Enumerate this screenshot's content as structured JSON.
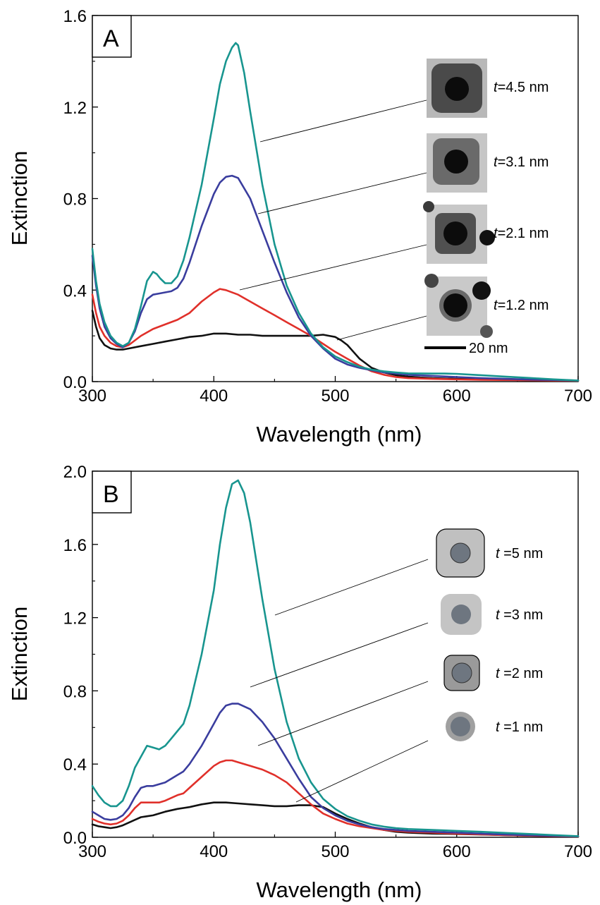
{
  "colors": {
    "black": "#111111",
    "red": "#e0302a",
    "blue": "#3a3d9e",
    "teal": "#18958f"
  },
  "scale_bar_label": "20 nm",
  "chart_data": [
    {
      "type": "line",
      "panel_label": "A",
      "xlabel": "Wavelength (nm)",
      "ylabel": "Extinction",
      "xlim": [
        300,
        700
      ],
      "ylim": [
        0,
        1.6
      ],
      "xticks": [
        "300",
        "400",
        "500",
        "600",
        "700"
      ],
      "yticks": [
        "0.0",
        "0.4",
        "0.8",
        "1.2",
        "1.6"
      ],
      "grid": false,
      "annotations": [
        {
          "prefix": "t",
          "text": "=4.5 nm",
          "series": 3
        },
        {
          "prefix": "t",
          "text": "=3.1 nm",
          "series": 2
        },
        {
          "prefix": "t",
          "text": "=2.1 nm",
          "series": 1
        },
        {
          "prefix": "t",
          "text": "=1.2 nm",
          "series": 0
        }
      ],
      "series": [
        {
          "color": "black",
          "x": [
            300,
            303,
            306,
            310,
            315,
            320,
            325,
            330,
            340,
            350,
            360,
            370,
            380,
            390,
            400,
            410,
            420,
            430,
            440,
            450,
            460,
            470,
            480,
            490,
            495,
            500,
            505,
            510,
            515,
            520,
            525,
            530,
            540,
            550,
            560,
            570,
            580,
            600,
            620,
            640,
            660,
            680,
            700
          ],
          "y": [
            0.31,
            0.24,
            0.19,
            0.16,
            0.145,
            0.14,
            0.14,
            0.145,
            0.155,
            0.165,
            0.175,
            0.185,
            0.195,
            0.2,
            0.21,
            0.21,
            0.205,
            0.205,
            0.2,
            0.2,
            0.2,
            0.2,
            0.2,
            0.205,
            0.2,
            0.195,
            0.18,
            0.16,
            0.13,
            0.1,
            0.08,
            0.06,
            0.04,
            0.028,
            0.022,
            0.018,
            0.015,
            0.012,
            0.01,
            0.008,
            0.006,
            0.005,
            0.004
          ]
        },
        {
          "color": "red",
          "x": [
            300,
            303,
            306,
            310,
            315,
            320,
            325,
            330,
            340,
            350,
            360,
            370,
            380,
            390,
            400,
            405,
            410,
            420,
            430,
            440,
            450,
            460,
            470,
            480,
            490,
            500,
            510,
            520,
            530,
            540,
            550,
            560,
            580,
            600,
            620,
            640,
            660,
            680,
            700
          ],
          "y": [
            0.38,
            0.3,
            0.24,
            0.2,
            0.17,
            0.155,
            0.15,
            0.16,
            0.2,
            0.23,
            0.25,
            0.27,
            0.3,
            0.35,
            0.39,
            0.405,
            0.4,
            0.38,
            0.35,
            0.32,
            0.29,
            0.26,
            0.23,
            0.2,
            0.165,
            0.13,
            0.1,
            0.07,
            0.045,
            0.03,
            0.02,
            0.015,
            0.012,
            0.01,
            0.008,
            0.007,
            0.006,
            0.005,
            0.004
          ]
        },
        {
          "color": "blue",
          "x": [
            300,
            303,
            306,
            310,
            315,
            320,
            325,
            330,
            335,
            340,
            345,
            350,
            355,
            360,
            365,
            370,
            375,
            380,
            390,
            400,
            405,
            410,
            415,
            420,
            430,
            440,
            450,
            460,
            470,
            480,
            490,
            500,
            510,
            520,
            530,
            540,
            550,
            560,
            580,
            600,
            620,
            640,
            660,
            680,
            700
          ],
          "y": [
            0.55,
            0.42,
            0.32,
            0.24,
            0.19,
            0.165,
            0.15,
            0.17,
            0.22,
            0.3,
            0.36,
            0.38,
            0.385,
            0.39,
            0.395,
            0.41,
            0.45,
            0.52,
            0.68,
            0.82,
            0.87,
            0.895,
            0.9,
            0.89,
            0.8,
            0.66,
            0.52,
            0.39,
            0.28,
            0.2,
            0.145,
            0.1,
            0.075,
            0.06,
            0.05,
            0.04,
            0.035,
            0.03,
            0.025,
            0.02,
            0.015,
            0.012,
            0.009,
            0.007,
            0.005
          ]
        },
        {
          "color": "teal",
          "x": [
            300,
            303,
            306,
            310,
            315,
            320,
            325,
            330,
            335,
            340,
            345,
            350,
            353,
            356,
            360,
            365,
            370,
            375,
            380,
            390,
            400,
            405,
            410,
            415,
            418,
            420,
            425,
            430,
            440,
            450,
            460,
            470,
            480,
            490,
            500,
            510,
            520,
            530,
            540,
            550,
            560,
            580,
            590,
            600,
            620,
            640,
            660,
            680,
            700
          ],
          "y": [
            0.58,
            0.44,
            0.34,
            0.26,
            0.2,
            0.17,
            0.155,
            0.17,
            0.23,
            0.33,
            0.44,
            0.48,
            0.47,
            0.45,
            0.43,
            0.43,
            0.46,
            0.53,
            0.63,
            0.86,
            1.15,
            1.3,
            1.4,
            1.46,
            1.48,
            1.47,
            1.35,
            1.18,
            0.86,
            0.6,
            0.42,
            0.3,
            0.21,
            0.15,
            0.11,
            0.085,
            0.065,
            0.052,
            0.045,
            0.04,
            0.036,
            0.035,
            0.035,
            0.034,
            0.028,
            0.022,
            0.016,
            0.01,
            0.005
          ]
        }
      ]
    },
    {
      "type": "line",
      "panel_label": "B",
      "xlabel": "Wavelength (nm)",
      "ylabel": "Extinction",
      "xlim": [
        300,
        700
      ],
      "ylim": [
        0,
        2.0
      ],
      "xticks": [
        "300",
        "400",
        "500",
        "600",
        "700"
      ],
      "yticks": [
        "0.0",
        "0.4",
        "0.8",
        "1.2",
        "1.6",
        "2.0"
      ],
      "grid": false,
      "annotations": [
        {
          "prefix": "t",
          "text": " =5 nm",
          "series": 3
        },
        {
          "prefix": "t",
          "text": " =3 nm",
          "series": 2
        },
        {
          "prefix": "t",
          "text": " =2 nm",
          "series": 1
        },
        {
          "prefix": "t",
          "text": " =1 nm",
          "series": 0
        }
      ],
      "series": [
        {
          "color": "black",
          "x": [
            300,
            305,
            310,
            315,
            320,
            325,
            330,
            335,
            340,
            345,
            350,
            360,
            370,
            380,
            390,
            400,
            410,
            420,
            430,
            440,
            450,
            460,
            470,
            480,
            490,
            500,
            510,
            520,
            530,
            540,
            550,
            560,
            580,
            600,
            620,
            640,
            660,
            680,
            700
          ],
          "y": [
            0.07,
            0.06,
            0.055,
            0.05,
            0.055,
            0.065,
            0.08,
            0.095,
            0.11,
            0.115,
            0.12,
            0.14,
            0.155,
            0.165,
            0.18,
            0.19,
            0.19,
            0.185,
            0.18,
            0.175,
            0.17,
            0.17,
            0.175,
            0.175,
            0.165,
            0.13,
            0.1,
            0.075,
            0.055,
            0.04,
            0.03,
            0.025,
            0.02,
            0.018,
            0.015,
            0.012,
            0.009,
            0.006,
            0.004
          ]
        },
        {
          "color": "red",
          "x": [
            300,
            305,
            310,
            315,
            320,
            325,
            330,
            335,
            340,
            345,
            350,
            355,
            360,
            370,
            375,
            380,
            390,
            400,
            405,
            410,
            415,
            420,
            430,
            440,
            450,
            460,
            470,
            480,
            490,
            500,
            510,
            520,
            530,
            540,
            550,
            560,
            580,
            600,
            620,
            640,
            660,
            680,
            700
          ],
          "y": [
            0.1,
            0.085,
            0.075,
            0.07,
            0.075,
            0.09,
            0.12,
            0.16,
            0.19,
            0.19,
            0.19,
            0.19,
            0.2,
            0.23,
            0.24,
            0.27,
            0.33,
            0.39,
            0.41,
            0.42,
            0.42,
            0.41,
            0.39,
            0.37,
            0.34,
            0.3,
            0.24,
            0.18,
            0.13,
            0.1,
            0.075,
            0.06,
            0.05,
            0.04,
            0.035,
            0.03,
            0.025,
            0.02,
            0.016,
            0.012,
            0.009,
            0.006,
            0.004
          ]
        },
        {
          "color": "blue",
          "x": [
            300,
            305,
            310,
            315,
            320,
            325,
            330,
            335,
            340,
            345,
            350,
            355,
            360,
            370,
            375,
            380,
            390,
            400,
            405,
            410,
            415,
            420,
            430,
            440,
            450,
            460,
            470,
            480,
            490,
            500,
            510,
            520,
            530,
            540,
            550,
            560,
            580,
            600,
            620,
            640,
            660,
            680,
            700
          ],
          "y": [
            0.14,
            0.12,
            0.1,
            0.095,
            0.1,
            0.12,
            0.16,
            0.22,
            0.27,
            0.28,
            0.28,
            0.29,
            0.3,
            0.34,
            0.36,
            0.4,
            0.5,
            0.62,
            0.68,
            0.72,
            0.73,
            0.73,
            0.7,
            0.63,
            0.54,
            0.43,
            0.32,
            0.22,
            0.16,
            0.12,
            0.09,
            0.07,
            0.055,
            0.045,
            0.04,
            0.035,
            0.03,
            0.025,
            0.02,
            0.015,
            0.011,
            0.008,
            0.005
          ]
        },
        {
          "color": "teal",
          "x": [
            300,
            305,
            310,
            315,
            320,
            325,
            330,
            335,
            340,
            345,
            350,
            355,
            360,
            365,
            370,
            375,
            380,
            390,
            400,
            405,
            410,
            415,
            420,
            425,
            430,
            440,
            450,
            460,
            470,
            480,
            490,
            500,
            510,
            520,
            530,
            540,
            550,
            560,
            580,
            600,
            620,
            640,
            660,
            680,
            700
          ],
          "y": [
            0.28,
            0.23,
            0.19,
            0.17,
            0.17,
            0.2,
            0.28,
            0.38,
            0.44,
            0.5,
            0.49,
            0.48,
            0.5,
            0.54,
            0.58,
            0.62,
            0.72,
            1.0,
            1.35,
            1.6,
            1.8,
            1.93,
            1.95,
            1.88,
            1.72,
            1.3,
            0.92,
            0.63,
            0.43,
            0.3,
            0.21,
            0.155,
            0.115,
            0.09,
            0.07,
            0.058,
            0.05,
            0.045,
            0.04,
            0.035,
            0.03,
            0.024,
            0.018,
            0.012,
            0.006
          ]
        }
      ]
    }
  ]
}
